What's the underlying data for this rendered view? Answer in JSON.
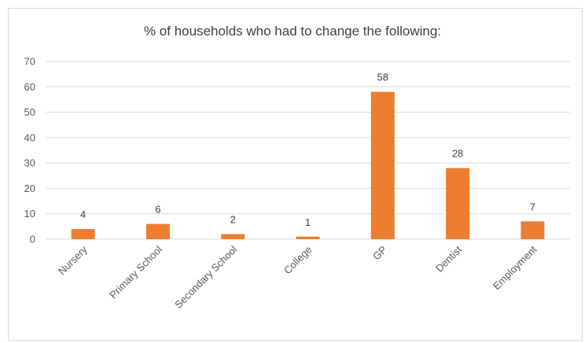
{
  "chart_data": {
    "type": "bar",
    "title": "% of households who had to change the following:",
    "categories": [
      "Nursery",
      "Primary School",
      "Secondary School",
      "College",
      "GP",
      "Dentist",
      "Employment"
    ],
    "values": [
      4,
      6,
      2,
      1,
      58,
      28,
      7
    ],
    "data_labels": [
      "4",
      "6",
      "2",
      "1",
      "58",
      "28",
      "7"
    ],
    "xlabel": "",
    "ylabel": "",
    "ylim": [
      0,
      70
    ],
    "yticks": [
      0,
      10,
      20,
      30,
      40,
      50,
      60,
      70
    ],
    "grid": true,
    "legend": "none",
    "bar_color": "#ED7D31",
    "grid_color": "#D9D9D9"
  }
}
